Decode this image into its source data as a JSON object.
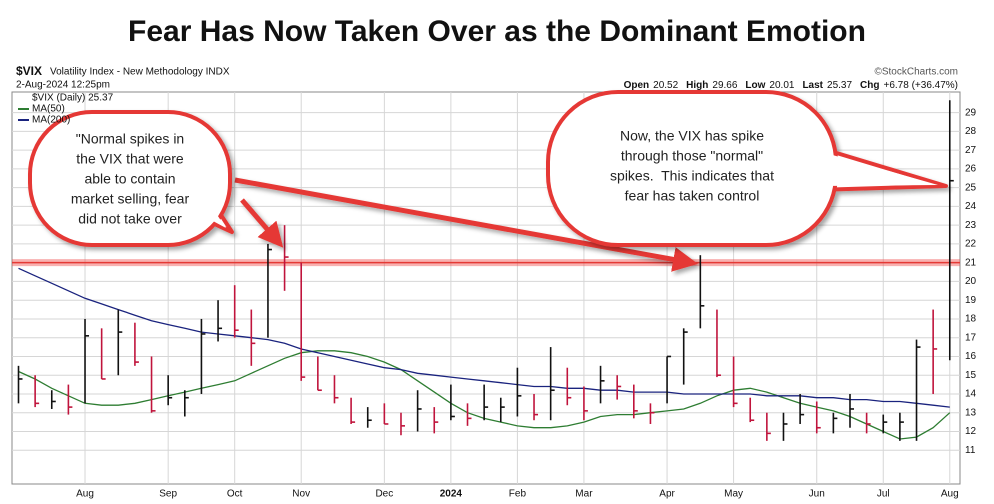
{
  "chart_data": {
    "type": "hlc",
    "title": "Fear Has Now Taken Over as the Dominant Emotion",
    "symbol": "$VIX",
    "description": "Volatility Index - New Methodology INDX",
    "timestamp": "2-Aug-2024 12:25pm",
    "source": "©StockCharts.com",
    "summary": [
      {
        "label": "Open",
        "value": "20.52"
      },
      {
        "label": "High",
        "value": "29.66"
      },
      {
        "label": "Low",
        "value": "20.01"
      },
      {
        "label": "Last",
        "value": "25.37"
      },
      {
        "label": "Chg",
        "value": "+6.78 (+36.47%)"
      }
    ],
    "price_label": "$VIX (Daily) 25.37",
    "up_color": "#111111",
    "down_color": "#c0143c",
    "categories": [
      null,
      null,
      null,
      null,
      "Aug",
      null,
      null,
      null,
      null,
      "Sep",
      null,
      null,
      null,
      "Oct",
      null,
      null,
      null,
      "Nov",
      null,
      null,
      null,
      null,
      "Dec",
      null,
      null,
      null,
      "2024",
      null,
      null,
      null,
      "Feb",
      null,
      null,
      null,
      "Mar",
      null,
      null,
      null,
      null,
      "Apr",
      null,
      null,
      null,
      "May",
      null,
      null,
      null,
      null,
      "Jun",
      null,
      null,
      null,
      "Jul",
      null,
      null,
      null,
      "Aug"
    ],
    "high": [
      15.5,
      15,
      14.2,
      14.5,
      18,
      17.5,
      18.5,
      17.8,
      16,
      15,
      14.2,
      18,
      19,
      19.8,
      18.5,
      22,
      23,
      21,
      16,
      15,
      13.8,
      13.3,
      13.5,
      13,
      14.2,
      13.3,
      14.5,
      13.5,
      14.5,
      13.8,
      15.4,
      14,
      16.5,
      15.4,
      14.4,
      15.5,
      15,
      14.5,
      13.5,
      16,
      17.5,
      21.4,
      18.5,
      16,
      13.8,
      13,
      13,
      14,
      13.6,
      13,
      14,
      13,
      12.9,
      13,
      16.9,
      18.5,
      29.66
    ],
    "low": [
      13.5,
      13.3,
      13.2,
      12.9,
      13.5,
      14.8,
      15,
      15.5,
      13,
      13.4,
      12.8,
      14,
      16.8,
      17,
      15.5,
      17,
      19.5,
      14.7,
      14.2,
      13.5,
      12.4,
      12.2,
      12.4,
      11.8,
      12,
      11.9,
      12.6,
      12.3,
      12.6,
      12.5,
      12.8,
      12.6,
      12.6,
      13.4,
      12.6,
      13.5,
      13.7,
      12.7,
      12.4,
      13.5,
      14.5,
      17.5,
      14.9,
      13.3,
      12.5,
      11.5,
      11.5,
      12.4,
      11.9,
      11.9,
      12.2,
      11.9,
      11.9,
      11.5,
      11.5,
      14,
      15.8
    ],
    "close": [
      14.8,
      13.5,
      13.6,
      13.3,
      17.1,
      14.8,
      17.3,
      15.7,
      13.1,
      13.8,
      13.8,
      17.2,
      17.5,
      17.4,
      16.7,
      21.7,
      21.3,
      14.9,
      14.2,
      13.8,
      12.5,
      12.6,
      12.4,
      12.3,
      13.2,
      12.5,
      12.8,
      12.7,
      13.3,
      13.3,
      13.9,
      12.9,
      14.2,
      13.8,
      13.1,
      14.7,
      14.4,
      13.1,
      13,
      16,
      17.3,
      18.7,
      15,
      13.5,
      12.6,
      11.9,
      12.4,
      12.9,
      12.2,
      12.7,
      13.2,
      12.4,
      12.5,
      12.5,
      16.5,
      16.4,
      25.37
    ],
    "series": [
      {
        "name": "MA(50)",
        "color": "#2e7d32",
        "values": [
          15.2,
          14.8,
          14.3,
          13.9,
          13.5,
          13.4,
          13.4,
          13.5,
          13.7,
          13.9,
          14.1,
          14.3,
          14.5,
          14.7,
          15.1,
          15.5,
          15.9,
          16.2,
          16.3,
          16.3,
          16.2,
          16,
          15.7,
          15.3,
          14.7,
          14.1,
          13.5,
          13,
          12.7,
          12.5,
          12.3,
          12.2,
          12.2,
          12.3,
          12.5,
          12.8,
          12.9,
          12.9,
          13,
          13.1,
          13.2,
          13.5,
          13.9,
          14.2,
          14.3,
          14.1,
          13.8,
          13.5,
          13.3,
          13.1,
          12.8,
          12.4,
          12,
          11.6,
          11.7,
          12.2,
          13
        ]
      },
      {
        "name": "MA(200)",
        "color": "#1a237e",
        "values": [
          20.7,
          20.3,
          19.9,
          19.5,
          19.1,
          18.8,
          18.5,
          18.2,
          17.9,
          17.7,
          17.5,
          17.3,
          17.2,
          17.1,
          17,
          16.9,
          16.7,
          16.4,
          16.2,
          16,
          15.8,
          15.6,
          15.4,
          15.3,
          15.1,
          15,
          14.9,
          14.8,
          14.7,
          14.6,
          14.5,
          14.4,
          14.4,
          14.3,
          14.3,
          14.2,
          14.2,
          14.1,
          14.1,
          14.1,
          14,
          14,
          14,
          14,
          14,
          13.9,
          13.9,
          13.9,
          13.8,
          13.8,
          13.7,
          13.7,
          13.6,
          13.6,
          13.5,
          13.4,
          13.3
        ]
      }
    ],
    "ylim": [
      9.2,
      30.1
    ],
    "yticks": [
      11,
      12,
      13,
      14,
      15,
      16,
      17,
      18,
      19,
      20,
      21,
      22,
      23,
      24,
      25,
      26,
      27,
      28,
      29
    ],
    "grid": true,
    "level": 21,
    "callouts": [
      {
        "lines": [
          "\"Normal spikes in",
          "the VIX that were",
          "able to contain",
          "market selling, fear",
          "did not take over"
        ]
      },
      {
        "lines": [
          "Now, the VIX has spike",
          "through those \"normal\"",
          "spikes.  This indicates that",
          "fear has taken control"
        ]
      }
    ]
  }
}
